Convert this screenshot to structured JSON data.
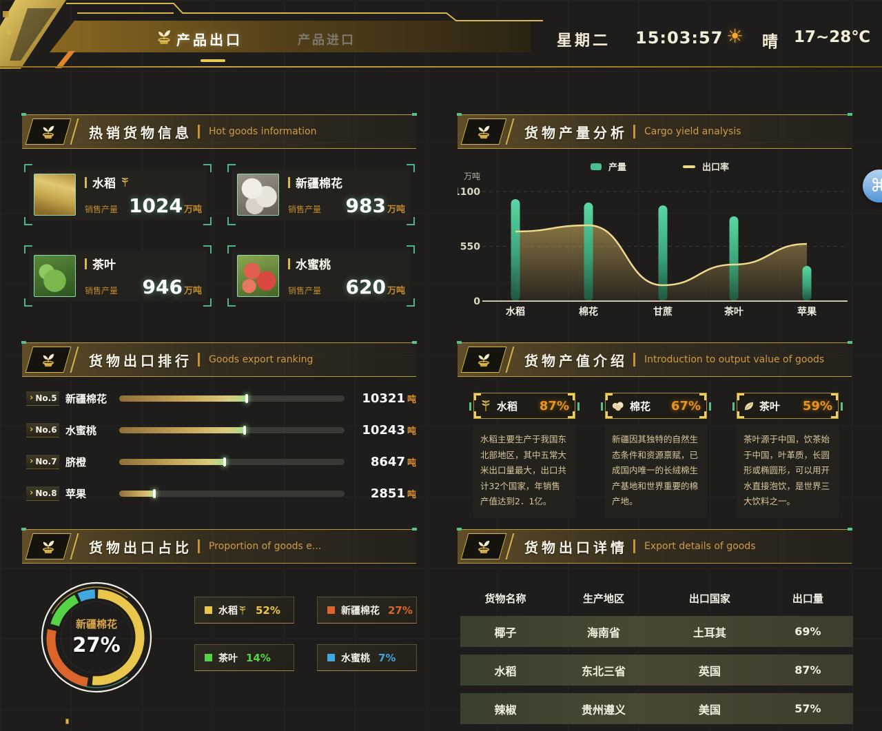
{
  "header": {
    "tabs": [
      {
        "label": "产品出口"
      },
      {
        "label": "产品进口"
      }
    ],
    "weekday": "星期二",
    "time": "15:03:57",
    "weather": "晴",
    "temp": "17~28℃"
  },
  "hot_goods": {
    "title": "热销货物信息",
    "subtitle": "Hot goods information",
    "sales_label": "销售产量",
    "unit": "万吨",
    "items": [
      {
        "name": "水稻",
        "value": "1024"
      },
      {
        "name": "新疆棉花",
        "value": "983"
      },
      {
        "name": "茶叶",
        "value": "946"
      },
      {
        "name": "水蜜桃",
        "value": "620"
      }
    ]
  },
  "yield_analysis": {
    "title": "货物产量分析",
    "subtitle": "Cargo yield analysis"
  },
  "export_ranking": {
    "title": "货物出口排行",
    "subtitle": "Goods export ranking",
    "unit": "吨",
    "items": [
      {
        "rank": "No.5",
        "name": "新疆棉花",
        "value": "10321",
        "pct": 57
      },
      {
        "rank": "No.6",
        "name": "水蜜桃",
        "value": "10243",
        "pct": 56
      },
      {
        "rank": "No.7",
        "name": "脐橙",
        "value": "8647",
        "pct": 47
      },
      {
        "rank": "No.8",
        "name": "苹果",
        "value": "2851",
        "pct": 16
      }
    ]
  },
  "value_intro": {
    "title": "货物产值介绍",
    "subtitle": "Introduction to output value of goods",
    "items": [
      {
        "name": "水稻",
        "pct": "87%",
        "desc": "水稻主要生产于我国东北部地区，其中五常大米出口量最大，出口共计32个国家，年销售产值达到2．1亿。"
      },
      {
        "name": "棉花",
        "pct": "67%",
        "desc": "新疆因其独特的自然生态条件和资源禀赋，已成国内唯一的长绒棉生产基地和世界重要的棉产地。"
      },
      {
        "name": "茶叶",
        "pct": "59%",
        "desc": "茶叶源于中国，饮茶始于中国，叶革质，长圆形或椭圆形，可以用开水直接泡饮，是世界三大饮料之一。"
      }
    ]
  },
  "proportion": {
    "title": "货物出口占比",
    "subtitle": "Proportion of goods e...",
    "center": {
      "name": "新疆棉花",
      "value": "27%"
    },
    "legend": [
      {
        "name": "水稻",
        "pct": "52%",
        "color": "#e9c74c"
      },
      {
        "name": "新疆棉花",
        "pct": "27%",
        "color": "#d9652a"
      },
      {
        "name": "茶叶",
        "pct": "14%",
        "color": "#56d447"
      },
      {
        "name": "水蜜桃",
        "pct": "7%",
        "color": "#3fa8e0"
      }
    ]
  },
  "export_details": {
    "title": "货物出口详情",
    "subtitle": "Export details of goods",
    "columns": [
      "货物名称",
      "生产地区",
      "出口国家",
      "出口量"
    ],
    "rows": [
      [
        "椰子",
        "海南省",
        "土耳其",
        "69%"
      ],
      [
        "水稻",
        "东北三省",
        "英国",
        "87%"
      ],
      [
        "辣椒",
        "贵州遵义",
        "美国",
        "57%"
      ]
    ]
  },
  "overlay": {
    "command_symbol": "⌘"
  },
  "chart_data": [
    {
      "type": "bar",
      "title": "货物产量分析",
      "ylabel": "万吨",
      "ylim": [
        0,
        1100
      ],
      "yticks": [
        0,
        550,
        1100
      ],
      "grid": "dashed-horizontal",
      "legend_position": "top",
      "categories": [
        "水稻",
        "棉花",
        "甘蔗",
        "茶叶",
        "苹果"
      ],
      "series": [
        {
          "name": "产量",
          "type": "bar",
          "color": "#49c08f",
          "values": [
            1024,
            989,
            961,
            851,
            353
          ]
        },
        {
          "name": "出口率",
          "type": "line",
          "color": "#eeda8f",
          "area": true,
          "values": [
            699,
            761,
            159,
            367,
            574
          ]
        }
      ]
    },
    {
      "type": "pie",
      "title": "货物出口占比",
      "labels": [
        "水稻",
        "新疆棉花",
        "茶叶",
        "水蜜桃"
      ],
      "values": [
        52,
        27,
        14,
        7
      ],
      "colors": [
        "#e9c74c",
        "#d9652a",
        "#56d447",
        "#3fa8e0"
      ],
      "selected": "新疆棉花",
      "center_label": "新疆棉花 27%",
      "legend_position": "right"
    }
  ]
}
